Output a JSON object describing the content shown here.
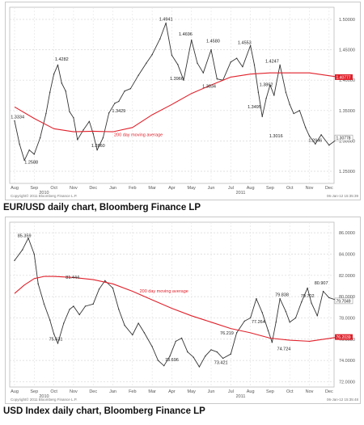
{
  "charts": [
    {
      "caption": "EUR/USD daily chart, Bloomberg Finance LP",
      "copyright": "Copyright© 2011 Bloomberg Finance L.P.",
      "timestamp": "06-Jan-12 15:35:39"
    },
    {
      "caption": "USD Index daily chart, Bloomberg Finance LP",
      "copyright": "Copyright© 2011 Bloomberg Finance L.P.",
      "timestamp": "06-Jan-12 15:35:48"
    }
  ],
  "chart_data": [
    {
      "type": "line",
      "price_color": "#333333",
      "ma_color": "#e0202a",
      "ylim": [
        1.23,
        1.52
      ],
      "x_ticks": [
        "Aug",
        "Sep",
        "Oct",
        "Nov",
        "Dec",
        "Jan",
        "Feb",
        "Mar",
        "Apr",
        "May",
        "Jun",
        "Jul",
        "Aug",
        "Sep",
        "Oct",
        "Nov",
        "Dec"
      ],
      "year_labels": [
        {
          "label": "2010",
          "after": "Sep"
        },
        {
          "label": "2011",
          "after": "Jul"
        }
      ],
      "y_ticks": [
        "1.50000",
        "1.45000",
        "1.40000",
        "1.35000",
        "1.30000",
        "1.25000"
      ],
      "y_tick_values": [
        1.5,
        1.45,
        1.4,
        1.35,
        1.3,
        1.25
      ],
      "series": [
        {
          "name": "EUR/USD",
          "x": [
            0,
            0.25,
            0.5,
            0.75,
            1,
            1.3,
            1.6,
            1.8,
            2,
            2.2,
            2.4,
            2.6,
            2.8,
            3,
            3.2,
            3.5,
            3.8,
            4,
            4.2,
            4.5,
            4.8,
            5.1,
            5.3,
            5.6,
            5.9,
            6.3,
            6.7,
            7,
            7.4,
            7.7,
            8,
            8.3,
            8.6,
            9,
            9.3,
            9.6,
            10,
            10.3,
            10.6,
            11,
            11.3,
            11.6,
            12,
            12.2,
            12.4,
            12.6,
            12.8,
            13,
            13.2,
            13.5,
            13.8,
            14,
            14.2,
            14.5,
            14.8,
            15,
            15.3,
            15.6,
            16,
            16.5
          ],
          "values": [
            1.333,
            1.295,
            1.268,
            1.285,
            1.278,
            1.305,
            1.345,
            1.38,
            1.41,
            1.425,
            1.395,
            1.382,
            1.348,
            1.338,
            1.302,
            1.318,
            1.332,
            1.312,
            1.285,
            1.305,
            1.346,
            1.362,
            1.365,
            1.382,
            1.386,
            1.408,
            1.428,
            1.442,
            1.468,
            1.494,
            1.441,
            1.426,
            1.4,
            1.466,
            1.428,
            1.412,
            1.45,
            1.402,
            1.4,
            1.43,
            1.436,
            1.422,
            1.457,
            1.425,
            1.38,
            1.34,
            1.37,
            1.392,
            1.375,
            1.425,
            1.38,
            1.36,
            1.345,
            1.35,
            1.322,
            1.308,
            1.295,
            1.31,
            1.293,
            1.305
          ]
        },
        {
          "name": "200 day moving average",
          "x": [
            0,
            1,
            2,
            3,
            4,
            5,
            6,
            7,
            8,
            9,
            10,
            11,
            12,
            13,
            14,
            15,
            16.5
          ],
          "values": [
            1.356,
            1.337,
            1.32,
            1.315,
            1.316,
            1.315,
            1.322,
            1.343,
            1.36,
            1.378,
            1.392,
            1.405,
            1.41,
            1.412,
            1.412,
            1.412,
            1.405
          ]
        }
      ],
      "annotations": [
        {
          "label": "1.3334",
          "x": 0.15,
          "y": 1.333
        },
        {
          "label": "1.2588",
          "x": 0.85,
          "y": 1.2588
        },
        {
          "label": "1.4282",
          "x": 2.4,
          "y": 1.4282
        },
        {
          "label": "1.2860",
          "x": 4.25,
          "y": 1.286
        },
        {
          "label": "1.3429",
          "x": 5.3,
          "y": 1.3429
        },
        {
          "label": "1.4941",
          "x": 7.7,
          "y": 1.4941
        },
        {
          "label": "1.4696",
          "x": 8.7,
          "y": 1.4696
        },
        {
          "label": "1.3966",
          "x": 8.25,
          "y": 1.3966
        },
        {
          "label": "1.4580",
          "x": 10.1,
          "y": 1.458
        },
        {
          "label": "1.3834",
          "x": 9.9,
          "y": 1.3834
        },
        {
          "label": "1.4553",
          "x": 11.7,
          "y": 1.4553
        },
        {
          "label": "1.4247",
          "x": 13.1,
          "y": 1.4247
        },
        {
          "label": "1.3862",
          "x": 12.8,
          "y": 1.3862
        },
        {
          "label": "1.3495",
          "x": 12.2,
          "y": 1.3495
        },
        {
          "label": "1.3016",
          "x": 13.3,
          "y": 1.3016
        },
        {
          "label": "1.2946",
          "x": 15.3,
          "y": 1.2946
        },
        {
          "label": "200 day moving average",
          "x": 6.3,
          "y": 1.308
        }
      ],
      "ma_last_label": "1.40777",
      "price_last_label": "1.30778"
    },
    {
      "type": "line",
      "price_color": "#333333",
      "ma_color": "#e0202a",
      "ylim": [
        71.5,
        87.0
      ],
      "x_ticks": [
        "Aug",
        "Sep",
        "Oct",
        "Nov",
        "Dec",
        "Jan",
        "Feb",
        "Mar",
        "Apr",
        "May",
        "Jun",
        "Jul",
        "Aug",
        "Sep",
        "Oct",
        "Nov",
        "Dec"
      ],
      "year_labels": [
        {
          "label": "2010",
          "after": "Sep"
        },
        {
          "label": "2011",
          "after": "Jul"
        }
      ],
      "y_ticks": [
        "86.0000",
        "84.0000",
        "82.0000",
        "80.0000",
        "78.0000",
        "76.0000",
        "74.0000",
        "72.0000"
      ],
      "y_tick_values": [
        86,
        84,
        82,
        80,
        78,
        76,
        74,
        72
      ],
      "series": [
        {
          "name": "USD Index",
          "x": [
            0,
            0.4,
            0.7,
            1,
            1.2,
            1.5,
            1.8,
            2,
            2.2,
            2.5,
            2.8,
            3,
            3.3,
            3.6,
            4,
            4.3,
            4.6,
            5,
            5.3,
            5.6,
            6,
            6.3,
            6.6,
            7,
            7.3,
            7.6,
            7.9,
            8.2,
            8.5,
            8.8,
            9.1,
            9.4,
            9.7,
            10,
            10.3,
            10.6,
            11,
            11.3,
            11.7,
            12,
            12.3,
            12.6,
            12.9,
            13.1,
            13.3,
            13.5,
            13.8,
            14,
            14.3,
            14.6,
            14.9,
            15.1,
            15.4,
            15.7,
            16,
            16.5
          ],
          "values": [
            83.4,
            84.4,
            85.5,
            84.0,
            81.2,
            79.3,
            77.8,
            76.5,
            75.6,
            77.5,
            78.8,
            79.1,
            78.3,
            79.1,
            79.3,
            80.7,
            81.5,
            80.8,
            78.8,
            77.3,
            76.4,
            77.5,
            76.6,
            75.3,
            74.0,
            73.5,
            74.4,
            75.8,
            76.1,
            74.8,
            74.3,
            73.4,
            74.4,
            75.0,
            74.8,
            74.2,
            74.6,
            76.6,
            77.7,
            78.0,
            79.8,
            78.5,
            76.8,
            75.7,
            77.6,
            79.8,
            78.6,
            77.6,
            78.0,
            79.5,
            80.8,
            79.4,
            78.2,
            80.5,
            79.9,
            79.6
          ]
        },
        {
          "name": "200 day moving average",
          "x": [
            0,
            0.5,
            1,
            1.5,
            2,
            3,
            4,
            5,
            6,
            7,
            8,
            9,
            10,
            11,
            12,
            13,
            14,
            15,
            16.5
          ],
          "values": [
            80.3,
            81.1,
            81.7,
            81.9,
            81.9,
            81.8,
            81.6,
            81.2,
            80.5,
            79.7,
            78.9,
            78.2,
            77.6,
            77.0,
            76.6,
            76.1,
            75.9,
            75.8,
            76.2
          ]
        }
      ],
      "annotations": [
        {
          "label": "85.359",
          "x": 0.5,
          "y": 85.359
        },
        {
          "label": "81.444",
          "x": 2.95,
          "y": 81.444
        },
        {
          "label": "75.631",
          "x": 2.1,
          "y": 75.631
        },
        {
          "label": "200 day moving average",
          "x": 7.6,
          "y": 80.4
        },
        {
          "label": "73.696",
          "x": 8.0,
          "y": 73.696
        },
        {
          "label": "73.421",
          "x": 10.5,
          "y": 73.421
        },
        {
          "label": "76.219",
          "x": 10.8,
          "y": 76.219
        },
        {
          "label": "77.264",
          "x": 12.4,
          "y": 77.264
        },
        {
          "label": "79.838",
          "x": 13.6,
          "y": 79.838
        },
        {
          "label": "74.724",
          "x": 13.7,
          "y": 74.724
        },
        {
          "label": "80.907",
          "x": 15.6,
          "y": 80.907
        },
        {
          "label": "79.702",
          "x": 14.9,
          "y": 79.702
        }
      ],
      "ma_last_label": "76.2039",
      "price_last_label": "79.7049"
    }
  ]
}
